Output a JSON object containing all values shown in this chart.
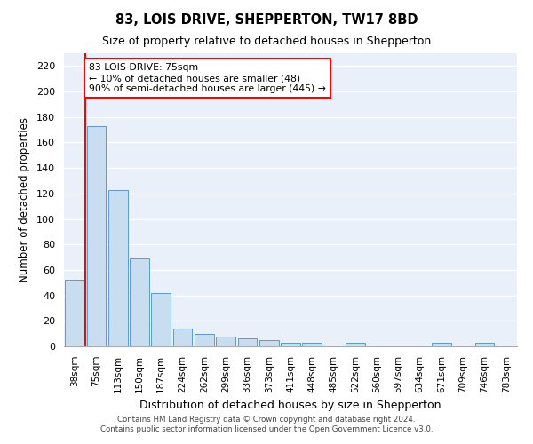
{
  "title": "83, LOIS DRIVE, SHEPPERTON, TW17 8BD",
  "subtitle": "Size of property relative to detached houses in Shepperton",
  "xlabel": "Distribution of detached houses by size in Shepperton",
  "ylabel": "Number of detached properties",
  "bar_labels": [
    "38sqm",
    "75sqm",
    "113sqm",
    "150sqm",
    "187sqm",
    "224sqm",
    "262sqm",
    "299sqm",
    "336sqm",
    "373sqm",
    "411sqm",
    "448sqm",
    "485sqm",
    "522sqm",
    "560sqm",
    "597sqm",
    "634sqm",
    "671sqm",
    "709sqm",
    "746sqm",
    "783sqm"
  ],
  "bar_values": [
    52,
    173,
    123,
    69,
    42,
    14,
    10,
    8,
    6,
    5,
    3,
    3,
    0,
    3,
    0,
    0,
    0,
    3,
    0,
    3,
    0
  ],
  "bar_color": "#c9ddf0",
  "bar_edge_color": "#5a9bd5",
  "red_line_index": 1,
  "ylim": [
    0,
    230
  ],
  "yticks": [
    0,
    20,
    40,
    60,
    80,
    100,
    120,
    140,
    160,
    180,
    200,
    220
  ],
  "annotation_lines": [
    "83 LOIS DRIVE: 75sqm",
    "← 10% of detached houses are smaller (48)",
    "90% of semi-detached houses are larger (445) →"
  ],
  "footer_line1": "Contains HM Land Registry data © Crown copyright and database right 2024.",
  "footer_line2": "Contains public sector information licensed under the Open Government Licence v3.0.",
  "background_color": "#eaf0fa",
  "grid_color": "#ffffff",
  "fig_width": 6.0,
  "fig_height": 5.0,
  "dpi": 100
}
